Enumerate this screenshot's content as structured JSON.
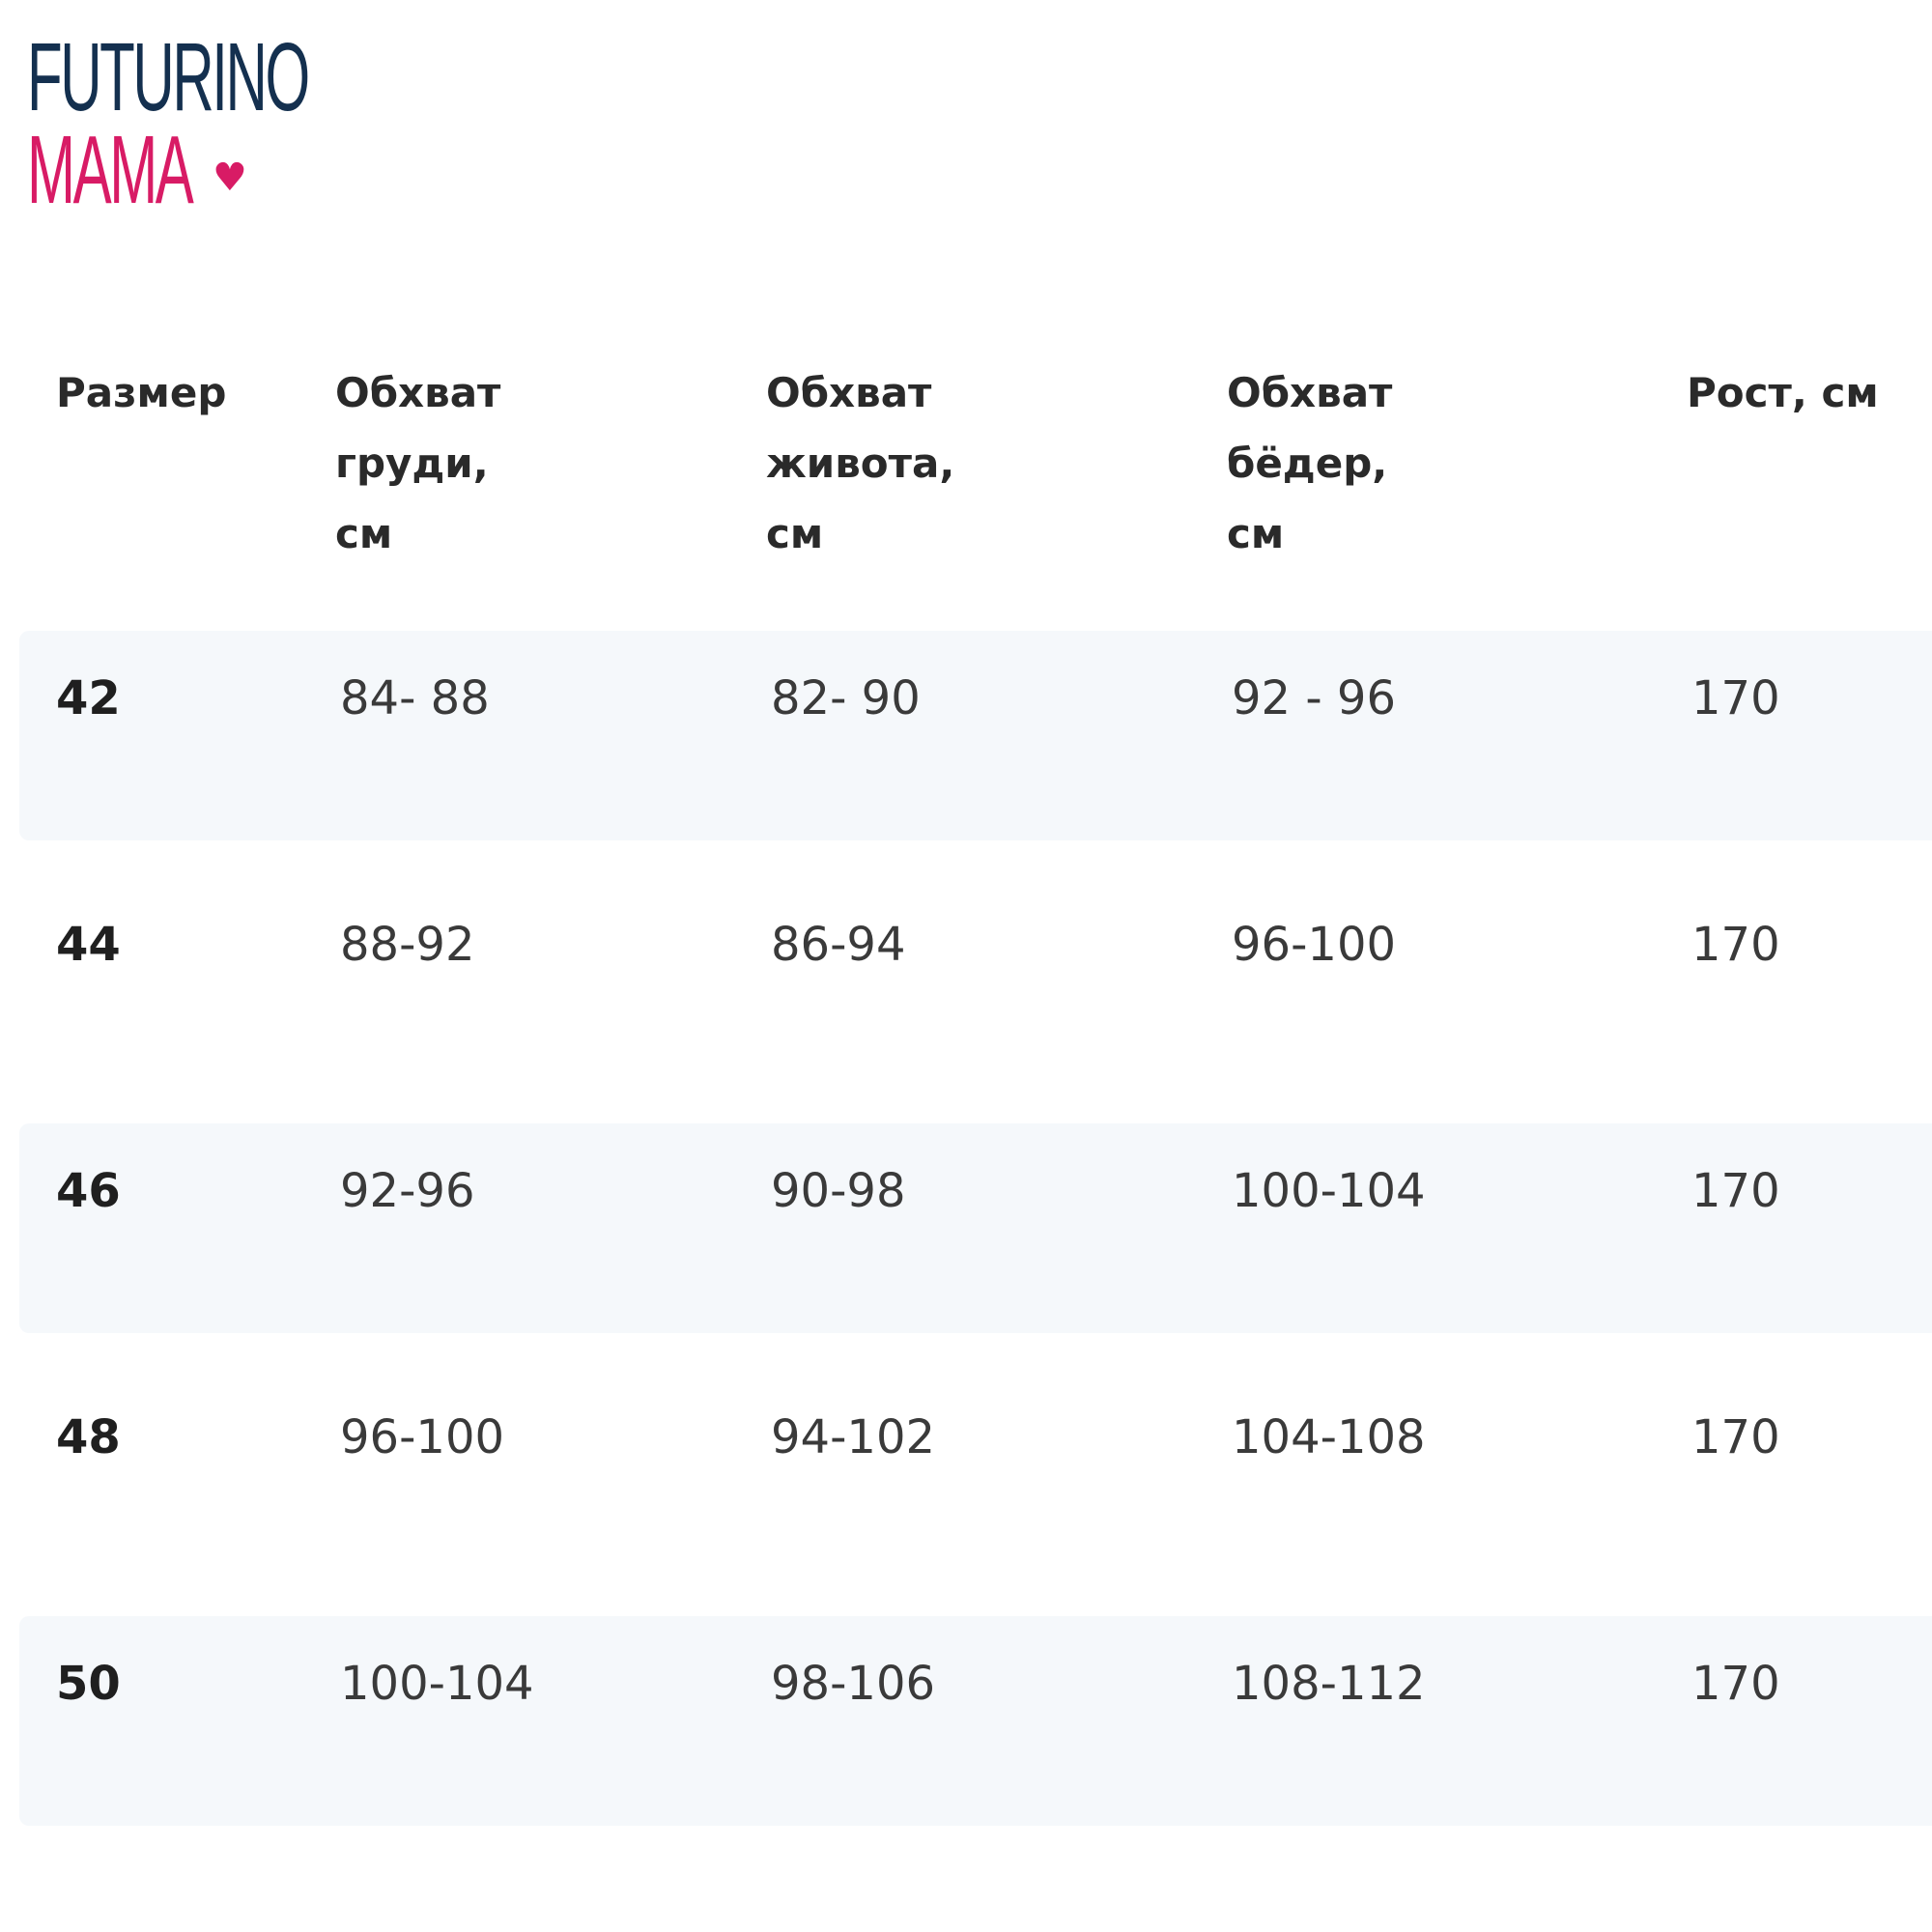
{
  "brand": {
    "line1": "FUTURINO",
    "line2": "MAMA",
    "colors": {
      "navy": "#14304f",
      "pink": "#d81b65"
    }
  },
  "table": {
    "headers": [
      {
        "lines": [
          "Размер"
        ]
      },
      {
        "lines": [
          "Обхват",
          "груди,",
          "см"
        ]
      },
      {
        "lines": [
          "Обхват",
          "живота,",
          "см"
        ]
      },
      {
        "lines": [
          "Обхват",
          "бёдер,",
          "см"
        ]
      },
      {
        "lines": [
          "Рост, см"
        ]
      }
    ],
    "rows": [
      [
        "42",
        "84- 88",
        "82- 90",
        "92 - 96",
        "170"
      ],
      [
        "44",
        "88-92",
        "86-94",
        "96-100",
        "170"
      ],
      [
        "46",
        "92-96",
        "90-98",
        "100-104",
        "170"
      ],
      [
        "48",
        "96-100",
        "94-102",
        "104-108",
        "170"
      ],
      [
        "50",
        "100-104",
        "98-106",
        "108-112",
        "170"
      ]
    ],
    "band_color": "#f5f8fb"
  }
}
